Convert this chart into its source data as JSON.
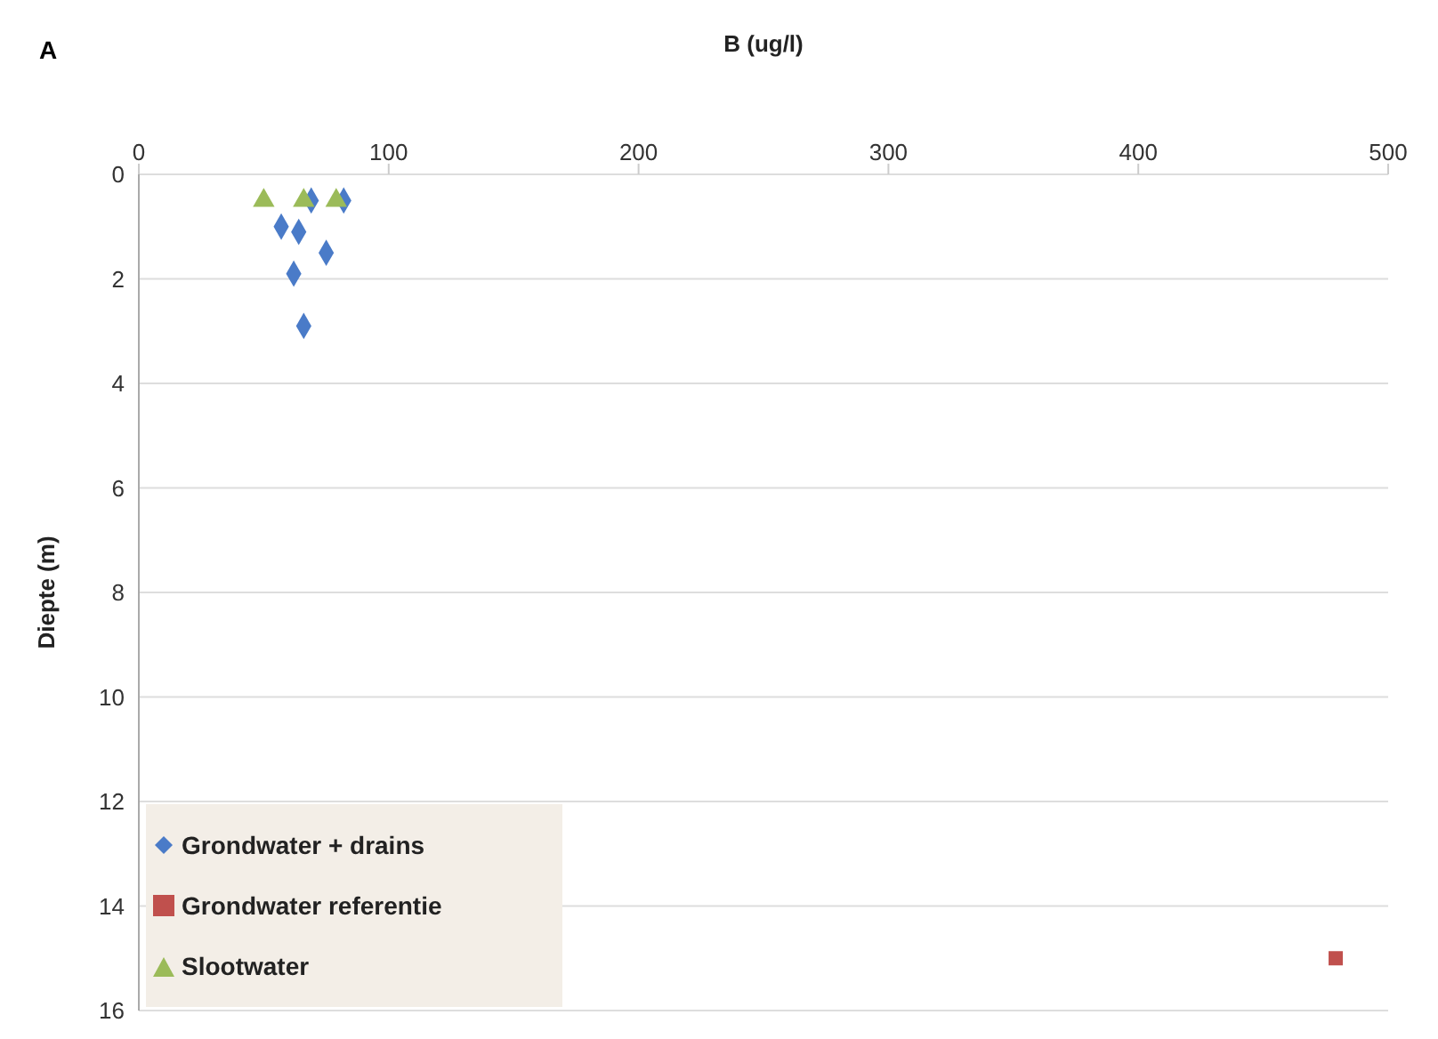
{
  "chart_data": {
    "type": "scatter",
    "title": "A",
    "xlabel": "B (ug/l)",
    "ylabel": "Diepte (m)",
    "xlim": [
      0,
      500
    ],
    "xticks": [
      0,
      100,
      200,
      300,
      400,
      500
    ],
    "ylim": [
      16,
      0
    ],
    "yticks": [
      0,
      2,
      4,
      6,
      8,
      10,
      12,
      14,
      16
    ],
    "grid": "y",
    "legend": "bottom left",
    "series": [
      {
        "name": "Grondwater + drains",
        "color": "#4a7bc8",
        "marker": "diamond",
        "x": [
          82,
          69,
          57,
          64,
          75,
          62,
          66
        ],
        "values": [
          0.5,
          0.5,
          1.0,
          1.1,
          1.5,
          1.9,
          2.9
        ]
      },
      {
        "name": "Grondwater referentie",
        "color": "#c0504d",
        "marker": "square",
        "x": [
          479
        ],
        "values": [
          15
        ]
      },
      {
        "name": "Slootwater",
        "color": "#9bbb59",
        "marker": "triangle",
        "x": [
          50,
          66,
          79
        ],
        "values": [
          0.5,
          0.5,
          0.5
        ]
      }
    ]
  }
}
